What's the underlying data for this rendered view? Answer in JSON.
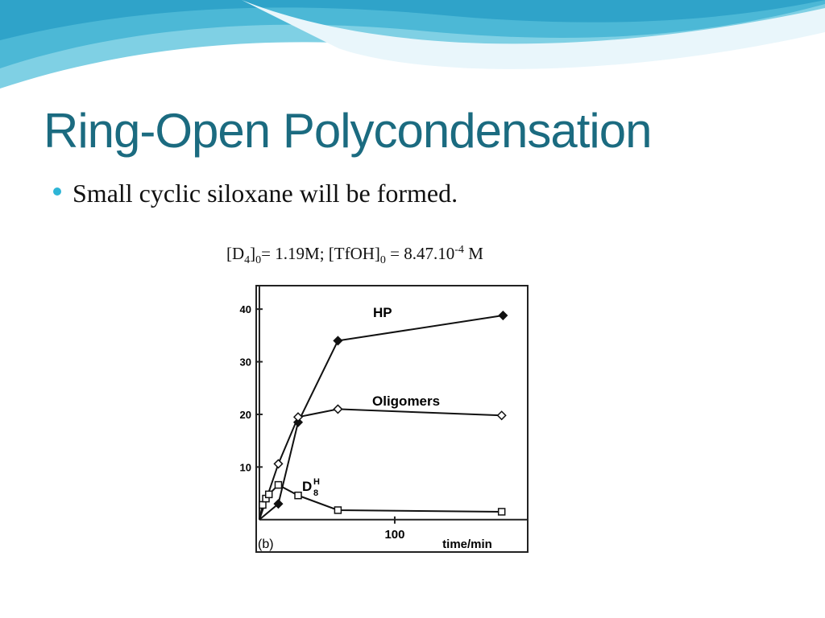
{
  "title": "Ring-Open Polycondensation",
  "bullets": [
    "Small cyclic siloxane will be formed."
  ],
  "formula": [
    "[D",
    "4",
    "]",
    "0",
    "=  1.19M; [TfOH]",
    "0",
    "  =  8.47.10",
    "-4",
    " M"
  ],
  "chart_data": {
    "type": "scatter-line",
    "panel_label": "(b)",
    "x_label": "time/min",
    "xlim": [
      -2,
      198
    ],
    "xticks": [
      100
    ],
    "ylim": [
      -6,
      44
    ],
    "yticks": [
      10,
      20,
      30,
      40
    ],
    "series": [
      {
        "name": "HP",
        "marker": "filled-diamond",
        "color": "#111111",
        "x": [
          14,
          28.6,
          58,
          180
        ],
        "values": [
          3,
          18.5,
          34,
          38.8
        ]
      },
      {
        "name": "Oligomers",
        "marker": "open-diamond",
        "color": "#111111",
        "x": [
          14,
          28.6,
          58,
          179
        ],
        "values": [
          10.6,
          19.5,
          21,
          19.8
        ]
      },
      {
        "name": "D",
        "name_sub": "8",
        "name_sup": "H",
        "marker": "open-square",
        "color": "#111111",
        "x": [
          2.4,
          4.8,
          7,
          14,
          28.6,
          58,
          179
        ],
        "values": [
          2.8,
          4,
          4.8,
          6.6,
          4.6,
          1.8,
          1.5
        ]
      }
    ]
  }
}
